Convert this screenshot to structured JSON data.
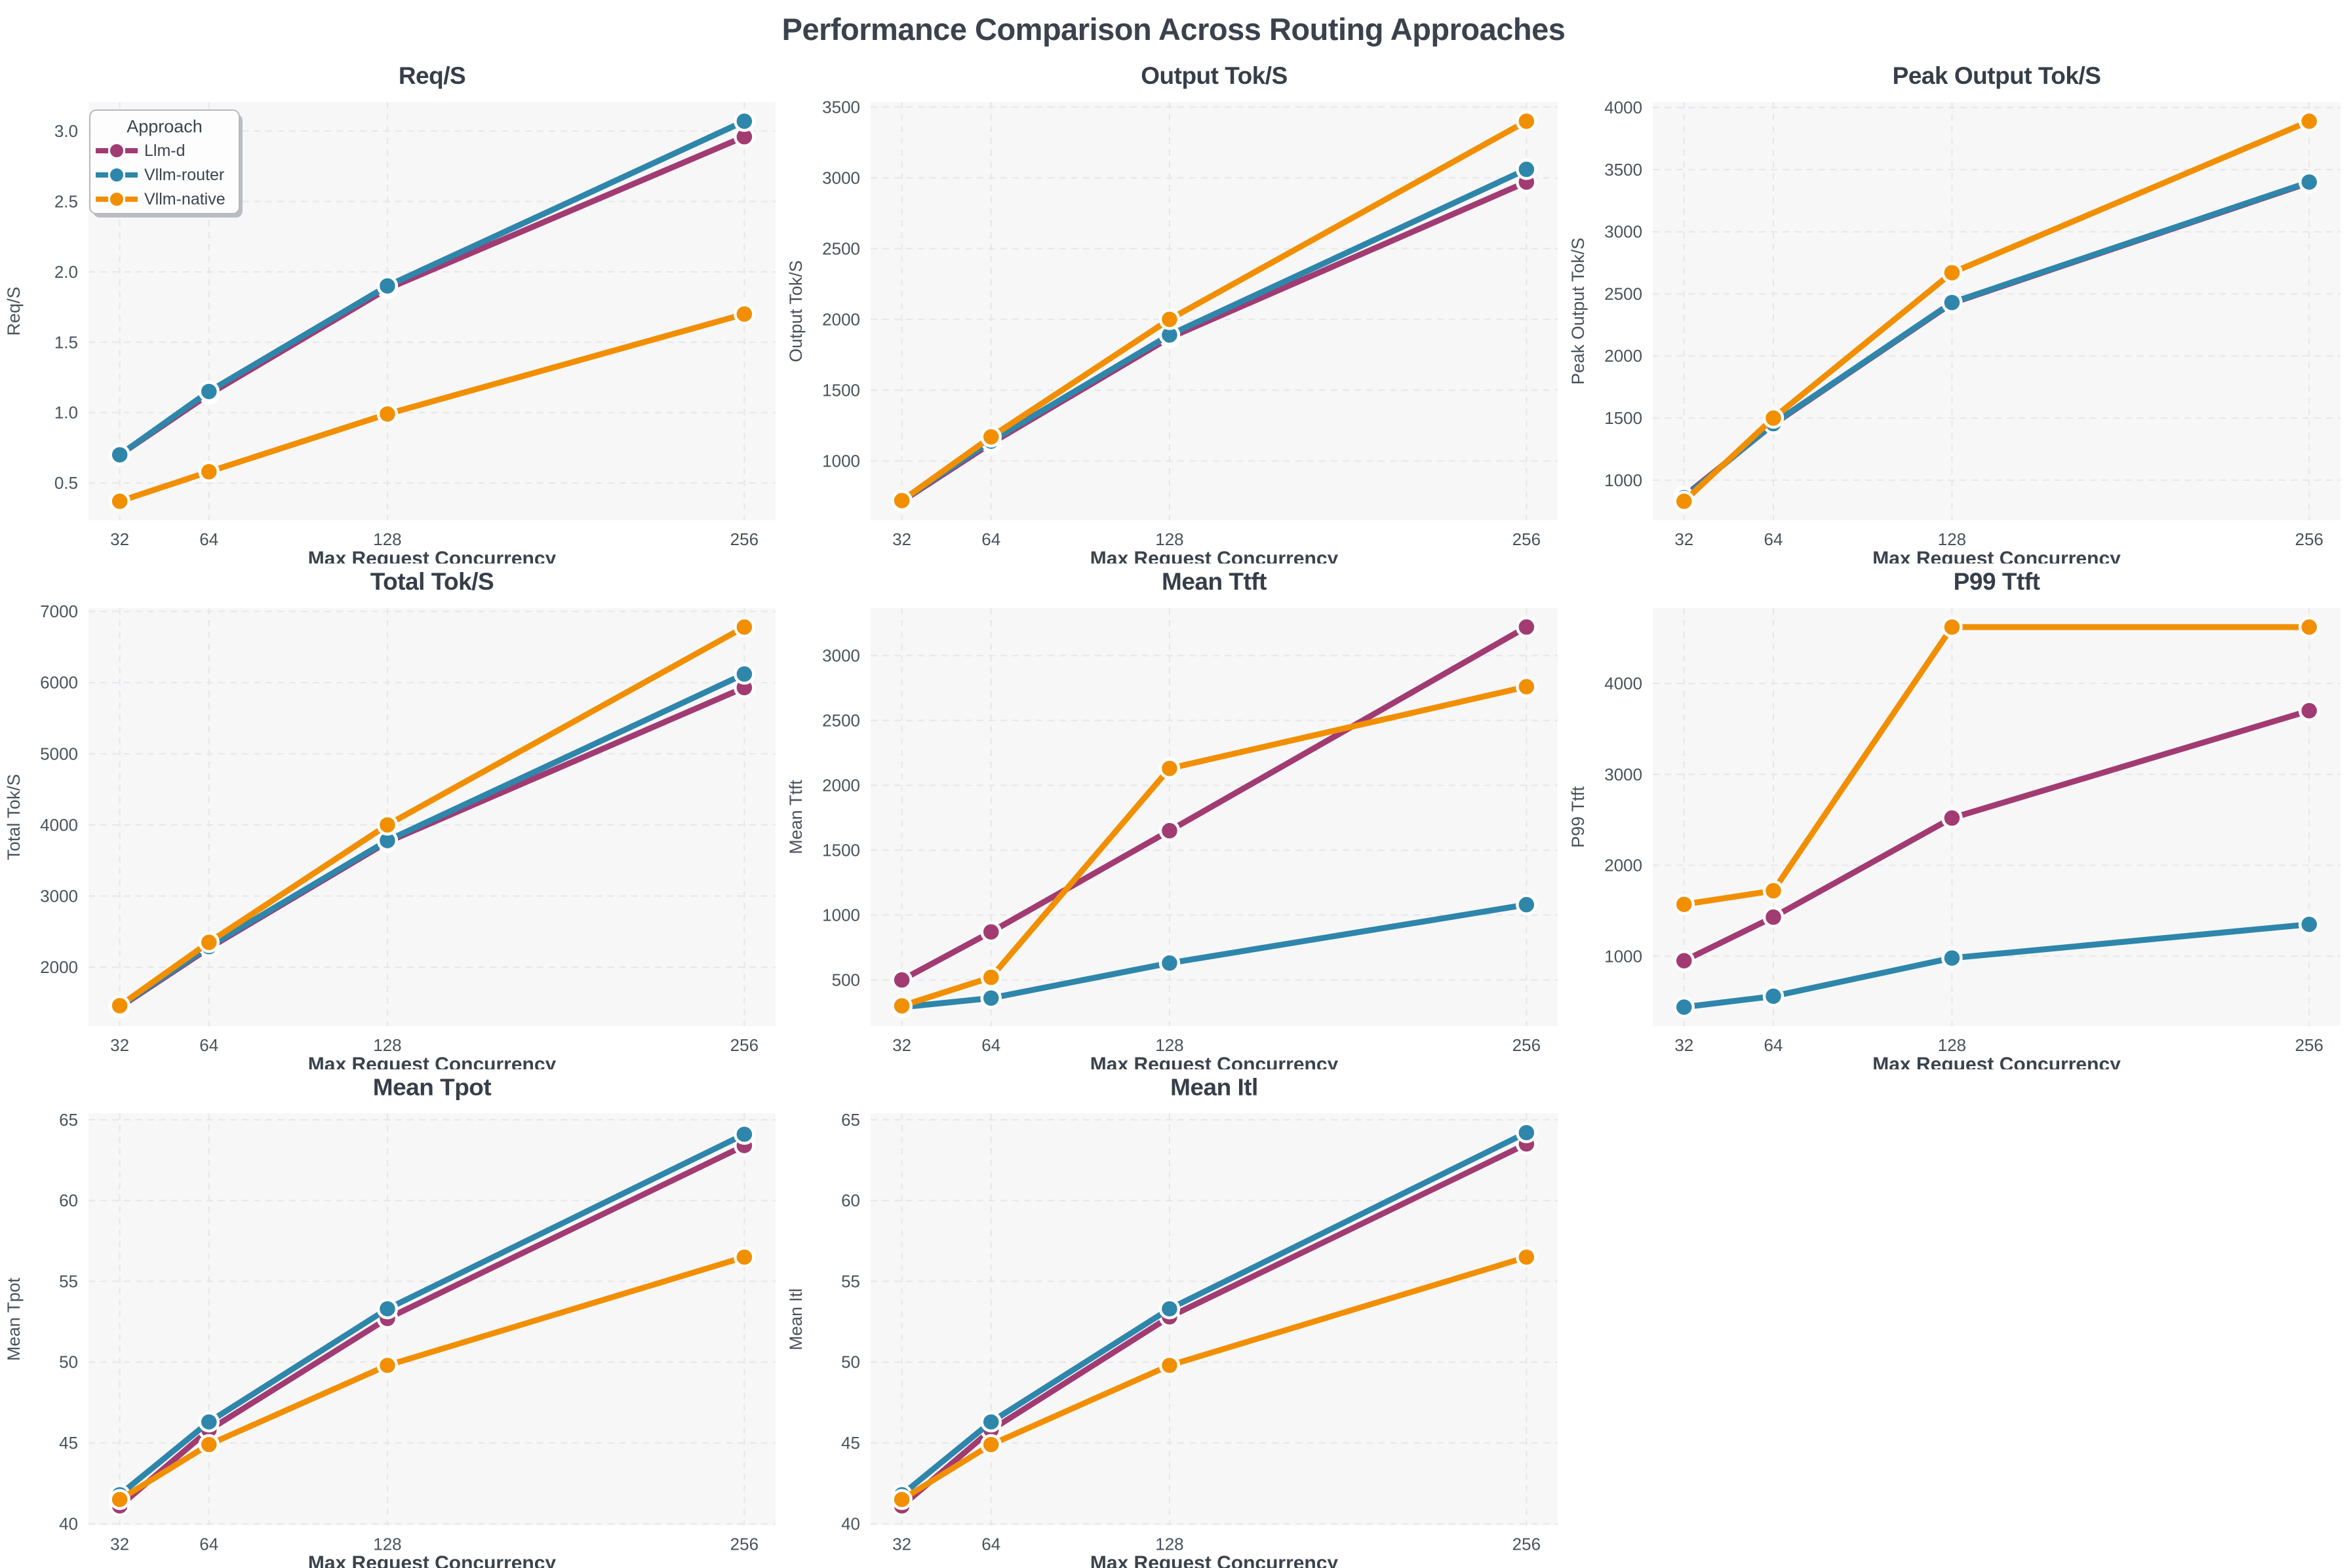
{
  "figure": {
    "title": "Performance Comparison Across Routing Approaches"
  },
  "palette": {
    "Llm-d": "#A23B72",
    "Vllm-router": "#2E86AB",
    "Vllm-native": "#F18F01"
  },
  "legend": {
    "title": "Approach",
    "entries": [
      "Llm-d",
      "Vllm-router",
      "Vllm-native"
    ]
  },
  "chart_data": [
    {
      "type": "line",
      "title": "Req/S",
      "xlabel": "Max Request Concurrency",
      "ylabel": "Req/S",
      "x": [
        32,
        64,
        128,
        256
      ],
      "xtick_labels": [
        "32",
        "64",
        "128",
        "256"
      ],
      "xlim": [
        20.8,
        267.2
      ],
      "ylim": [
        0.235,
        3.205
      ],
      "yticks": [
        0.5,
        1.0,
        1.5,
        2.0,
        2.5,
        3.0
      ],
      "ytick_labels": [
        "0.5",
        "1.0",
        "1.5",
        "2.0",
        "2.5",
        "3.0"
      ],
      "grid": true,
      "legend": true,
      "series": [
        {
          "name": "Llm-d",
          "values": [
            0.7,
            1.13,
            1.88,
            2.96
          ]
        },
        {
          "name": "Vllm-router",
          "values": [
            0.7,
            1.15,
            1.9,
            3.07
          ]
        },
        {
          "name": "Vllm-native",
          "values": [
            0.37,
            0.58,
            0.99,
            1.7
          ]
        }
      ]
    },
    {
      "type": "line",
      "title": "Output Tok/S",
      "xlabel": "Max Request Concurrency",
      "ylabel": "Output Tok/S",
      "x": [
        32,
        64,
        128,
        256
      ],
      "xtick_labels": [
        "32",
        "64",
        "128",
        "256"
      ],
      "xlim": [
        20.8,
        267.2
      ],
      "ylim": [
        581,
        3534
      ],
      "yticks": [
        1000,
        1500,
        2000,
        2500,
        3000,
        3500
      ],
      "ytick_labels": [
        "1000",
        "1500",
        "2000",
        "2500",
        "3000",
        "3500"
      ],
      "grid": true,
      "legend": false,
      "series": [
        {
          "name": "Llm-d",
          "values": [
            715,
            1125,
            1870,
            2970
          ]
        },
        {
          "name": "Vllm-router",
          "values": [
            720,
            1140,
            1890,
            3060
          ]
        },
        {
          "name": "Vllm-native",
          "values": [
            720,
            1170,
            2000,
            3400
          ]
        }
      ]
    },
    {
      "type": "line",
      "title": "Peak Output Tok/S",
      "xlabel": "Max Request Concurrency",
      "ylabel": "Peak Output Tok/S",
      "x": [
        32,
        64,
        128,
        256
      ],
      "xtick_labels": [
        "32",
        "64",
        "128",
        "256"
      ],
      "xlim": [
        20.8,
        267.2
      ],
      "ylim": [
        677,
        4043
      ],
      "yticks": [
        1000,
        1500,
        2000,
        2500,
        3000,
        3500,
        4000
      ],
      "ytick_labels": [
        "1000",
        "1500",
        "2000",
        "2500",
        "3000",
        "3500",
        "4000"
      ],
      "grid": true,
      "legend": false,
      "series": [
        {
          "name": "Llm-d",
          "values": [
            870,
            1450,
            2425,
            3395
          ]
        },
        {
          "name": "Vllm-router",
          "values": [
            860,
            1455,
            2430,
            3400
          ]
        },
        {
          "name": "Vllm-native",
          "values": [
            830,
            1500,
            2670,
            3890
          ]
        }
      ]
    },
    {
      "type": "line",
      "title": "Total Tok/S",
      "xlabel": "Max Request Concurrency",
      "ylabel": "Total Tok/S",
      "x": [
        32,
        64,
        128,
        256
      ],
      "xtick_labels": [
        "32",
        "64",
        "128",
        "256"
      ],
      "xlim": [
        20.8,
        267.2
      ],
      "ylim": [
        1173,
        7047
      ],
      "yticks": [
        2000,
        3000,
        4000,
        5000,
        6000,
        7000
      ],
      "ytick_labels": [
        "2000",
        "3000",
        "4000",
        "5000",
        "6000",
        "7000"
      ],
      "grid": true,
      "legend": false,
      "series": [
        {
          "name": "Llm-d",
          "values": [
            1440,
            2270,
            3760,
            5930
          ]
        },
        {
          "name": "Vllm-router",
          "values": [
            1450,
            2290,
            3780,
            6120
          ]
        },
        {
          "name": "Vllm-native",
          "values": [
            1460,
            2350,
            4000,
            6780
          ]
        }
      ]
    },
    {
      "type": "line",
      "title": "Mean Ttft",
      "xlabel": "Max Request Concurrency",
      "ylabel": "Mean Ttft",
      "x": [
        32,
        64,
        128,
        256
      ],
      "xtick_labels": [
        "32",
        "64",
        "128",
        "256"
      ],
      "xlim": [
        20.8,
        267.2
      ],
      "ylim": [
        144,
        3366
      ],
      "yticks": [
        500,
        1000,
        1500,
        2000,
        2500,
        3000
      ],
      "ytick_labels": [
        "500",
        "1000",
        "1500",
        "2000",
        "2500",
        "3000"
      ],
      "grid": true,
      "legend": false,
      "series": [
        {
          "name": "Llm-d",
          "values": [
            500,
            870,
            1650,
            3220
          ]
        },
        {
          "name": "Vllm-router",
          "values": [
            290,
            360,
            630,
            1080
          ]
        },
        {
          "name": "Vllm-native",
          "values": [
            300,
            520,
            2130,
            2760
          ]
        }
      ]
    },
    {
      "type": "line",
      "title": "P99 Ttft",
      "xlabel": "Max Request Concurrency",
      "ylabel": "P99 Ttft",
      "x": [
        32,
        64,
        128,
        256
      ],
      "xtick_labels": [
        "32",
        "64",
        "128",
        "256"
      ],
      "xlim": [
        20.8,
        267.2
      ],
      "ylim": [
        231,
        4829
      ],
      "yticks": [
        1000,
        2000,
        3000,
        4000
      ],
      "ytick_labels": [
        "1000",
        "2000",
        "3000",
        "4000"
      ],
      "grid": true,
      "legend": false,
      "series": [
        {
          "name": "Llm-d",
          "values": [
            950,
            1430,
            2520,
            3700
          ]
        },
        {
          "name": "Vllm-router",
          "values": [
            440,
            560,
            980,
            1350
          ]
        },
        {
          "name": "Vllm-native",
          "values": [
            1570,
            1720,
            4620,
            4620
          ]
        }
      ]
    },
    {
      "type": "line",
      "title": "Mean Tpot",
      "xlabel": "Max Request Concurrency",
      "ylabel": "Mean Tpot",
      "x": [
        32,
        64,
        128,
        256
      ],
      "xtick_labels": [
        "32",
        "64",
        "128",
        "256"
      ],
      "xlim": [
        20.8,
        267.2
      ],
      "ylim": [
        39.9,
        65.4
      ],
      "yticks": [
        40,
        45,
        50,
        55,
        60,
        65
      ],
      "ytick_labels": [
        "40",
        "45",
        "50",
        "55",
        "60",
        "65"
      ],
      "grid": true,
      "legend": false,
      "series": [
        {
          "name": "Llm-d",
          "values": [
            41.1,
            45.8,
            52.7,
            63.4
          ]
        },
        {
          "name": "Vllm-router",
          "values": [
            41.8,
            46.3,
            53.3,
            64.1
          ]
        },
        {
          "name": "Vllm-native",
          "values": [
            41.5,
            44.9,
            49.8,
            56.5
          ]
        }
      ]
    },
    {
      "type": "line",
      "title": "Mean Itl",
      "xlabel": "Max Request Concurrency",
      "ylabel": "Mean Itl",
      "x": [
        32,
        64,
        128,
        256
      ],
      "xtick_labels": [
        "32",
        "64",
        "128",
        "256"
      ],
      "xlim": [
        20.8,
        267.2
      ],
      "ylim": [
        39.9,
        65.4
      ],
      "yticks": [
        40,
        45,
        50,
        55,
        60,
        65
      ],
      "ytick_labels": [
        "40",
        "45",
        "50",
        "55",
        "60",
        "65"
      ],
      "grid": true,
      "legend": false,
      "series": [
        {
          "name": "Llm-d",
          "values": [
            41.1,
            45.8,
            52.8,
            63.5
          ]
        },
        {
          "name": "Vllm-router",
          "values": [
            41.8,
            46.3,
            53.3,
            64.2
          ]
        },
        {
          "name": "Vllm-native",
          "values": [
            41.5,
            44.9,
            49.8,
            56.5
          ]
        }
      ]
    }
  ]
}
